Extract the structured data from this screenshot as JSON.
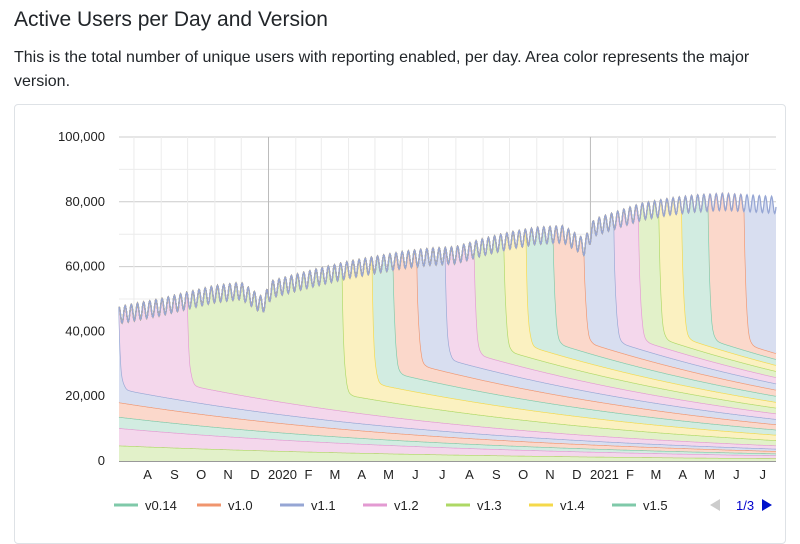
{
  "header": {
    "title": "Active Users per Day and Version",
    "description": "This is the total number of unique users with reporting enabled, per day. Area color represents the major version."
  },
  "chart_data": {
    "type": "area",
    "stacked": true,
    "title": "",
    "xlabel": "",
    "ylabel": "",
    "ylim": [
      0,
      100000
    ],
    "yticks": [
      "0",
      "20,000",
      "40,000",
      "60,000",
      "80,000",
      "100,000"
    ],
    "xticks": [
      "A",
      "S",
      "O",
      "N",
      "D",
      "2020",
      "F",
      "M",
      "A",
      "M",
      "J",
      "J",
      "A",
      "S",
      "O",
      "N",
      "D",
      "2021",
      "F",
      "M",
      "A",
      "M",
      "J",
      "J"
    ],
    "x_start": "2019-07-15",
    "x_end": "2021-07-31",
    "grid": true,
    "legend_position": "bottom",
    "legend_page": "1/3",
    "total_users": [
      {
        "date": "2019-07-15",
        "value": 45000
      },
      {
        "date": "2019-09-01",
        "value": 47500
      },
      {
        "date": "2019-10-01",
        "value": 49500
      },
      {
        "date": "2019-11-01",
        "value": 51500
      },
      {
        "date": "2019-12-01",
        "value": 52500
      },
      {
        "date": "2019-12-25",
        "value": 48000
      },
      {
        "date": "2020-01-05",
        "value": 53000
      },
      {
        "date": "2020-02-01",
        "value": 55000
      },
      {
        "date": "2020-03-01",
        "value": 57000
      },
      {
        "date": "2020-04-01",
        "value": 59000
      },
      {
        "date": "2020-05-01",
        "value": 60500
      },
      {
        "date": "2020-06-01",
        "value": 62000
      },
      {
        "date": "2020-07-01",
        "value": 63000
      },
      {
        "date": "2020-08-01",
        "value": 63500
      },
      {
        "date": "2020-09-01",
        "value": 66000
      },
      {
        "date": "2020-10-01",
        "value": 68000
      },
      {
        "date": "2020-11-01",
        "value": 69500
      },
      {
        "date": "2020-12-01",
        "value": 70000
      },
      {
        "date": "2020-12-25",
        "value": 66000
      },
      {
        "date": "2021-01-05",
        "value": 72000
      },
      {
        "date": "2021-02-01",
        "value": 74500
      },
      {
        "date": "2021-03-01",
        "value": 77000
      },
      {
        "date": "2021-04-01",
        "value": 78500
      },
      {
        "date": "2021-05-01",
        "value": 79500
      },
      {
        "date": "2021-06-01",
        "value": 80000
      },
      {
        "date": "2021-07-31",
        "value": 79000
      }
    ],
    "series": [
      {
        "name": "v0.14",
        "color": "#7fc9a9",
        "fill": "#d2ece1"
      },
      {
        "name": "v1.0",
        "color": "#f0956e",
        "fill": "#fbd8cb"
      },
      {
        "name": "v1.1",
        "color": "#96a6d4",
        "fill": "#d8def0"
      },
      {
        "name": "v1.2",
        "color": "#e39ad2",
        "fill": "#f4d7ec"
      },
      {
        "name": "v1.3",
        "color": "#aed865",
        "fill": "#e2f1c9"
      },
      {
        "name": "v1.4",
        "color": "#f5d94a",
        "fill": "#fbf1c1"
      },
      {
        "name": "v1.5",
        "color": "#7fc9a9",
        "fill": "#d2ece1"
      }
    ],
    "releases": [
      {
        "date": "2019-06-15",
        "series": 4,
        "residual": 5000
      },
      {
        "date": "2019-06-25",
        "series": 3,
        "residual": 5500
      },
      {
        "date": "2019-07-05",
        "series": 0,
        "residual": 3500
      },
      {
        "date": "2019-07-10",
        "series": 1,
        "residual": 4500
      },
      {
        "date": "2019-07-14",
        "series": 2,
        "residual": 4200
      },
      {
        "date": "2019-07-15",
        "series": 3,
        "residual": 5000
      },
      {
        "date": "2019-10-01",
        "series": 4,
        "residual": 5200
      },
      {
        "date": "2020-03-25",
        "series": 5,
        "residual": 5000
      },
      {
        "date": "2020-04-28",
        "series": 6,
        "residual": 4500
      },
      {
        "date": "2020-05-22",
        "series": 1,
        "residual": 4300
      },
      {
        "date": "2020-06-18",
        "series": 2,
        "residual": 4000
      },
      {
        "date": "2020-07-20",
        "series": 3,
        "residual": 3900
      },
      {
        "date": "2020-08-22",
        "series": 4,
        "residual": 3700
      },
      {
        "date": "2020-09-25",
        "series": 5,
        "residual": 3500
      },
      {
        "date": "2020-10-20",
        "series": 6,
        "residual": 3400
      },
      {
        "date": "2020-11-20",
        "series": 1,
        "residual": 3200
      },
      {
        "date": "2020-12-25",
        "series": 2,
        "residual": 3000
      },
      {
        "date": "2021-01-28",
        "series": 3,
        "residual": 2800
      },
      {
        "date": "2021-02-25",
        "series": 4,
        "residual": 2600
      },
      {
        "date": "2021-03-20",
        "series": 5,
        "residual": 2400
      },
      {
        "date": "2021-04-15",
        "series": 6,
        "residual": 2200
      },
      {
        "date": "2021-05-15",
        "series": 1,
        "residual": 2000
      },
      {
        "date": "2021-06-25",
        "series": 2,
        "residual": 1800
      }
    ]
  }
}
